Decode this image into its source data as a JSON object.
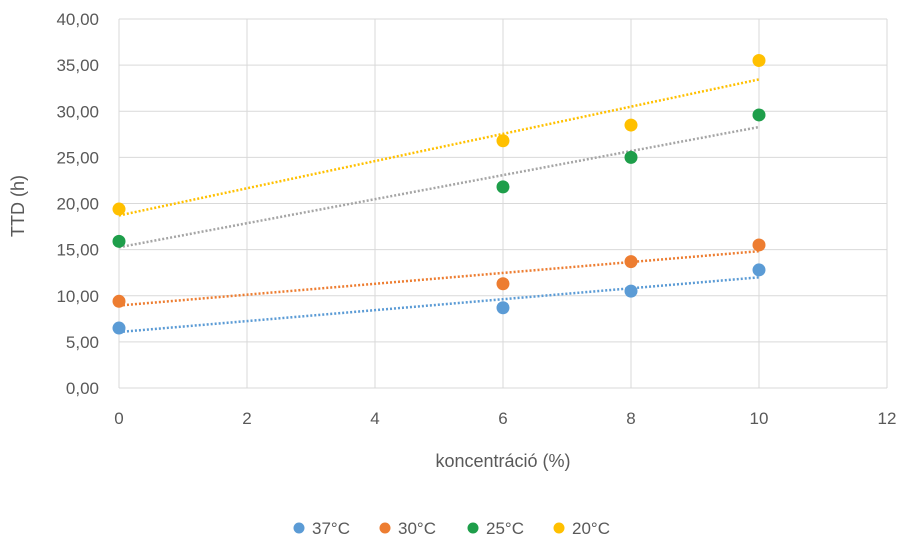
{
  "chart_data": {
    "type": "scatter",
    "title": "",
    "xlabel": "koncentráció (%)",
    "ylabel": "TTD (h)",
    "xlim": [
      0,
      12
    ],
    "ylim": [
      0,
      40
    ],
    "xticks": [
      0,
      2,
      4,
      6,
      8,
      10,
      12
    ],
    "yticks": [
      0,
      5,
      10,
      15,
      20,
      25,
      30,
      35,
      40
    ],
    "xtick_labels": [
      "0",
      "2",
      "4",
      "6",
      "8",
      "10",
      "12"
    ],
    "ytick_labels": [
      "0,00",
      "5,00",
      "10,00",
      "15,00",
      "20,00",
      "25,00",
      "30,00",
      "35,00",
      "40,00"
    ],
    "grid": true,
    "legend_position": "bottom",
    "trendlines": "linear",
    "x": [
      0,
      6,
      8,
      10
    ],
    "series": [
      {
        "name": "37°C",
        "color": "#5B9BD5",
        "values": [
          6.5,
          8.7,
          10.5,
          12.8
        ]
      },
      {
        "name": "30°C",
        "color": "#ED7D31",
        "values": [
          9.4,
          11.3,
          13.7,
          15.5
        ]
      },
      {
        "name": "25°C",
        "color": "#1E9E4A",
        "values": [
          15.9,
          21.8,
          25.0,
          29.6
        ]
      },
      {
        "name": "20°C",
        "color": "#FFC000",
        "values": [
          19.4,
          26.8,
          28.5,
          35.5
        ]
      }
    ],
    "trendline_colors": [
      "#5B9BD5",
      "#ED7D31",
      "#A5A5A5",
      "#FFC000"
    ]
  }
}
